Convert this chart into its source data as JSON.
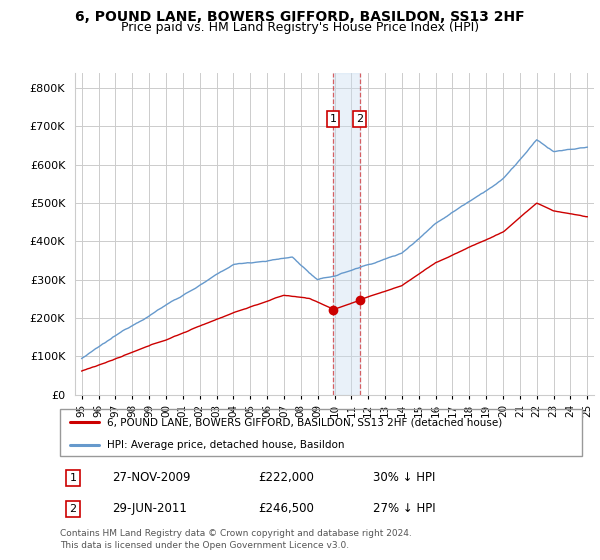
{
  "title": "6, POUND LANE, BOWERS GIFFORD, BASILDON, SS13 2HF",
  "subtitle": "Price paid vs. HM Land Registry's House Price Index (HPI)",
  "ylabel_ticks": [
    "£0",
    "£100K",
    "£200K",
    "£300K",
    "£400K",
    "£500K",
    "£600K",
    "£700K",
    "£800K"
  ],
  "ytick_vals": [
    0,
    100000,
    200000,
    300000,
    400000,
    500000,
    600000,
    700000,
    800000
  ],
  "ylim": [
    0,
    840000
  ],
  "legend_entry1": "6, POUND LANE, BOWERS GIFFORD, BASILDON, SS13 2HF (detached house)",
  "legend_entry2": "HPI: Average price, detached house, Basildon",
  "sale1_date": "27-NOV-2009",
  "sale1_price": "£222,000",
  "sale1_hpi": "30% ↓ HPI",
  "sale2_date": "29-JUN-2011",
  "sale2_price": "£246,500",
  "sale2_hpi": "27% ↓ HPI",
  "footnote": "Contains HM Land Registry data © Crown copyright and database right 2024.\nThis data is licensed under the Open Government Licence v3.0.",
  "red_color": "#cc0000",
  "blue_color": "#6699cc",
  "vline_color": "#cc0000",
  "shaded_color": "#c8ddf0",
  "shaded_alpha": 0.4,
  "sale1_year": 2009.92,
  "sale2_year": 2011.5,
  "start_year": 1995,
  "end_year": 2025,
  "grid_color": "#cccccc",
  "title_fontsize": 10,
  "subtitle_fontsize": 9
}
